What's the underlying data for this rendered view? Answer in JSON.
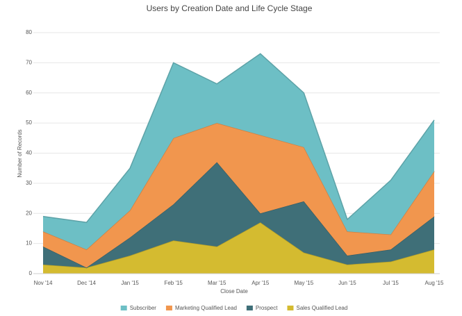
{
  "chart_data": {
    "type": "stacked-area",
    "title": "Users by Creation Date and Life Cycle Stage",
    "x_label": "Close Date",
    "y_label": "Number of Records",
    "categories": [
      "Nov '14",
      "Dec '14",
      "Jan '15",
      "Feb '15",
      "Mar '15",
      "Apr '15",
      "May '15",
      "Jun '15",
      "Jul '15",
      "Aug '15"
    ],
    "series": [
      {
        "name": "Subscriber",
        "color": "#6dbfc5",
        "values": [
          5,
          9,
          14,
          25,
          13,
          27,
          18,
          4,
          18,
          17
        ]
      },
      {
        "name": "Marketing Qualified Lead",
        "color": "#f1964e",
        "values": [
          5,
          6,
          9,
          22,
          13,
          26,
          18,
          8,
          5,
          15
        ]
      },
      {
        "name": "Prospect",
        "color": "#3f6f78",
        "values": [
          6,
          0,
          6,
          12,
          28,
          3,
          17,
          3,
          4,
          11
        ]
      },
      {
        "name": "Sales Qualified Lead",
        "color": "#d4bb30",
        "values": [
          3,
          2,
          6,
          11,
          9,
          17,
          7,
          3,
          4,
          8
        ]
      }
    ],
    "ylim": [
      0,
      80
    ],
    "yticks": [
      0,
      10,
      20,
      30,
      40,
      50,
      60,
      70,
      80
    ],
    "grid": true
  }
}
